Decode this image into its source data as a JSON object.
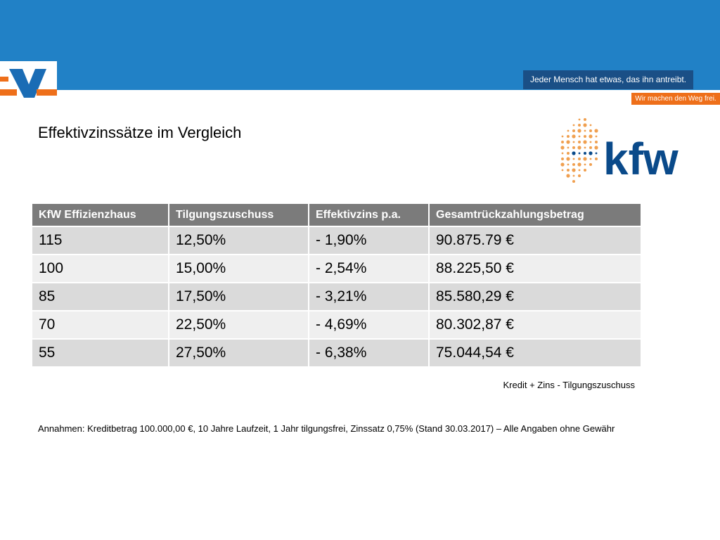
{
  "header": {
    "slogan_primary": "Jeder Mensch hat etwas, das ihn antreibt.",
    "slogan_secondary": "Wir machen den Weg frei.",
    "colors": {
      "blue_bar": "#2181c6",
      "dark_blue": "#1a4f86",
      "orange": "#ee6f1a"
    },
    "logo_icon": "volksbank-logo-icon"
  },
  "title": "Effektivzinssätze im Vergleich",
  "kfw_logo": {
    "text": "kfw",
    "icon": "kfw-logo-icon",
    "colors": {
      "text": "#0a4a8a",
      "dots": "#f0a050"
    }
  },
  "table": {
    "headers": [
      "KfW Effizienzhaus",
      "Tilgungszuschuss",
      "Effektivzins p.a.",
      "Gesamtrückzahlungsbetrag"
    ],
    "rows": [
      [
        "115",
        "12,50%",
        "- 1,90%",
        "90.875.79 €"
      ],
      [
        "100",
        "15,00%",
        "- 2,54%",
        "88.225,50 €"
      ],
      [
        "85",
        "17,50%",
        "- 3,21%",
        "85.580,29 €"
      ],
      [
        "70",
        "22,50%",
        "- 4,69%",
        "80.302,87 €"
      ],
      [
        "55",
        "27,50%",
        "- 6,38%",
        "75.044,54 €"
      ]
    ],
    "note": "Kredit + Zins - Tilgungszuschuss"
  },
  "assumptions": "Annahmen: Kreditbetrag 100.000,00 €, 10 Jahre Laufzeit, 1 Jahr tilgungsfrei, Zinssatz 0,75% (Stand 30.03.2017) – Alle Angaben ohne Gewähr"
}
